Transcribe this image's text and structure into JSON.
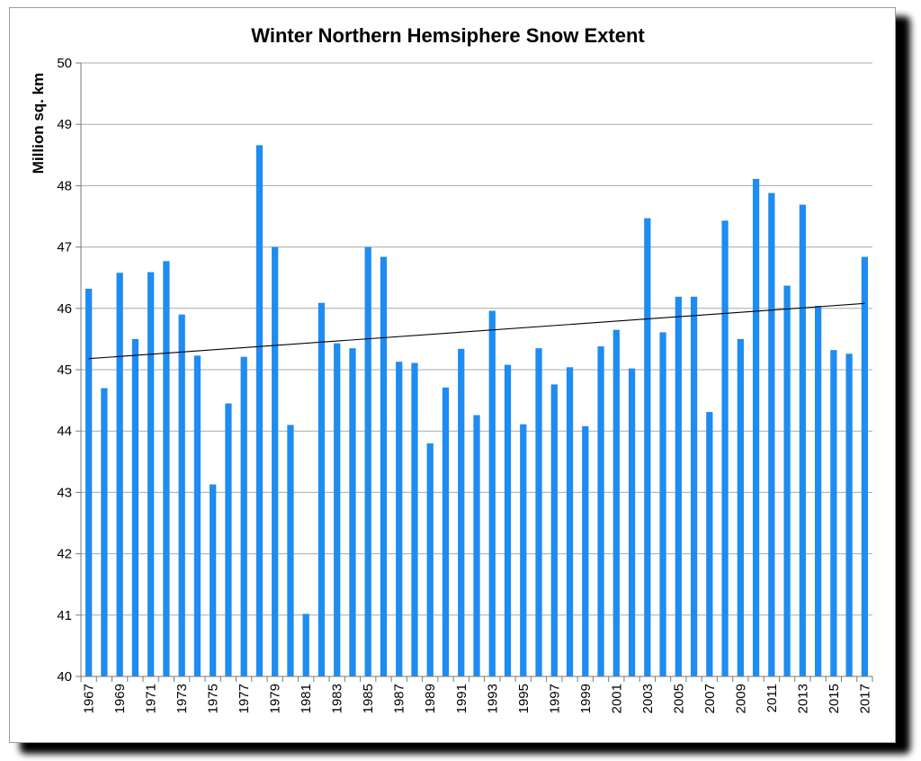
{
  "chart_data": {
    "type": "bar",
    "title": "Winter Northern Hemsiphere Snow Extent",
    "ylabel": "Million sq. km",
    "xlabel": "",
    "ylim": [
      40,
      50
    ],
    "yticks": [
      40,
      41,
      42,
      43,
      44,
      45,
      46,
      47,
      48,
      49,
      50
    ],
    "grid": true,
    "bar_color": "#1E8CF0",
    "trendline": {
      "start": 45.18,
      "end": 46.08,
      "color": "#000000"
    },
    "categories": [
      "1967",
      "1968",
      "1969",
      "1970",
      "1971",
      "1972",
      "1973",
      "1974",
      "1975",
      "1976",
      "1977",
      "1978",
      "1979",
      "1980",
      "1981",
      "1982",
      "1983",
      "1984",
      "1985",
      "1986",
      "1987",
      "1988",
      "1989",
      "1990",
      "1991",
      "1992",
      "1993",
      "1994",
      "1995",
      "1996",
      "1997",
      "1998",
      "1999",
      "2000",
      "2001",
      "2002",
      "2003",
      "2004",
      "2005",
      "2006",
      "2007",
      "2008",
      "2009",
      "2010",
      "2011",
      "2012",
      "2013",
      "2014",
      "2015",
      "2016",
      "2017"
    ],
    "xtick_labels": [
      "1967",
      "1969",
      "1971",
      "1973",
      "1975",
      "1977",
      "1979",
      "1981",
      "1983",
      "1985",
      "1987",
      "1989",
      "1991",
      "1993",
      "1995",
      "1997",
      "1999",
      "2001",
      "2003",
      "2005",
      "2007",
      "2009",
      "2011",
      "2013",
      "2015",
      "2017"
    ],
    "values": [
      46.32,
      44.7,
      46.58,
      45.5,
      46.59,
      46.77,
      45.9,
      45.23,
      43.13,
      44.45,
      45.21,
      48.66,
      47.0,
      44.1,
      41.02,
      46.09,
      45.43,
      45.35,
      47.0,
      46.84,
      45.13,
      45.11,
      43.8,
      44.71,
      45.34,
      44.26,
      45.96,
      45.08,
      44.11,
      45.35,
      44.76,
      45.04,
      44.08,
      45.38,
      45.65,
      45.02,
      47.47,
      45.61,
      46.19,
      46.19,
      44.31,
      47.43,
      45.5,
      48.11,
      47.88,
      46.37,
      47.69,
      46.04,
      45.32,
      45.26,
      46.84
    ]
  }
}
